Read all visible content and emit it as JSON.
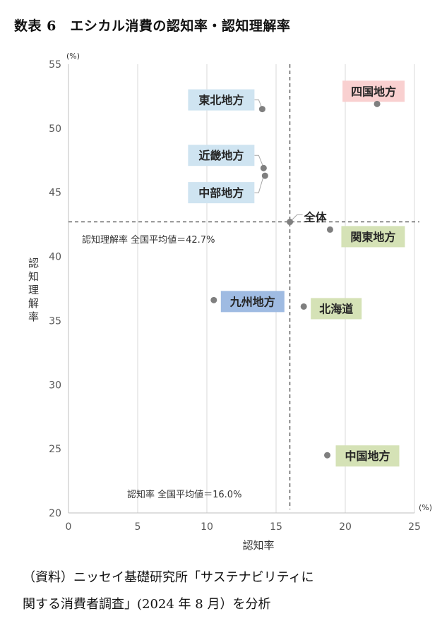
{
  "title": "数表 6　エシカル消費の認知率・認知理解率",
  "chart_data": {
    "type": "scatter",
    "xlabel": "認知率",
    "ylabel": "認知理解率",
    "x_unit": "(%)",
    "y_unit": "(%)",
    "xlim": [
      0,
      25
    ],
    "ylim": [
      20,
      55
    ],
    "xticks": [
      0,
      5,
      10,
      15,
      20,
      25
    ],
    "yticks": [
      20,
      25,
      30,
      35,
      40,
      45,
      50,
      55
    ],
    "grid": "vertical",
    "points": [
      {
        "label": "四国地方",
        "x": 22.3,
        "y": 51.9,
        "color": "#f9d0d0"
      },
      {
        "label": "東北地方",
        "x": 14.0,
        "y": 51.5,
        "color": "#cfe4f1"
      },
      {
        "label": "近畿地方",
        "x": 14.1,
        "y": 46.9,
        "color": "#cfe4f1"
      },
      {
        "label": "中部地方",
        "x": 14.2,
        "y": 46.3,
        "color": "#cfe4f1"
      },
      {
        "label": "全体",
        "x": 16.0,
        "y": 42.7,
        "color": "#ffffff"
      },
      {
        "label": "関東地方",
        "x": 18.9,
        "y": 42.1,
        "color": "#d5e2b6"
      },
      {
        "label": "九州地方",
        "x": 10.5,
        "y": 36.6,
        "color": "#9fbbe2"
      },
      {
        "label": "北海道",
        "x": 17.0,
        "y": 36.1,
        "color": "#d5e2b6"
      },
      {
        "label": "中国地方",
        "x": 18.7,
        "y": 24.5,
        "color": "#d5e2b6"
      }
    ],
    "reference_lines": {
      "x": {
        "value": 16.0,
        "label": "認知率 全国平均値＝16.0%"
      },
      "y": {
        "value": 42.7,
        "label": "認知理解率 全国平均値＝42.7%"
      }
    }
  },
  "caption": {
    "line1": "（資料）ニッセイ基礎研究所「サステナビリティに",
    "line2": "関する消費者調査」(2024 年 8 月）を分析"
  }
}
